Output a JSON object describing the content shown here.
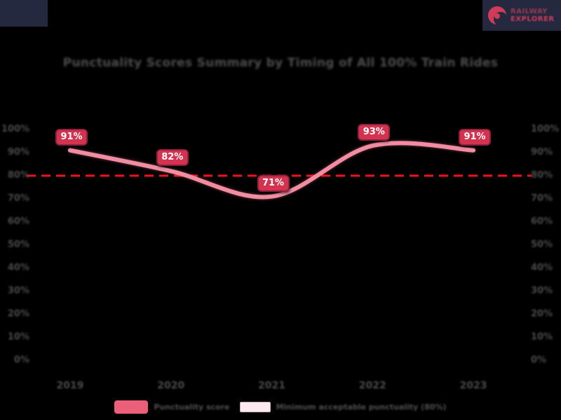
{
  "brand": {
    "name_line1": "RAILWAY",
    "name_line2": "EXPLORER"
  },
  "chart_data": {
    "type": "line",
    "title": "Punctuality Scores Summary by Timing of All 100% Train Rides",
    "categories": [
      "2019",
      "2020",
      "2021",
      "2022",
      "2023"
    ],
    "series": [
      {
        "name": "Punctuality score",
        "color": "#f08da1",
        "values": [
          91,
          82,
          71,
          93,
          91
        ],
        "point_label_suffix": "%"
      }
    ],
    "threshold": {
      "value": 80,
      "color": "#f2101c",
      "style": "dashed"
    },
    "ylim": [
      0,
      100
    ],
    "yticks": [
      100,
      90,
      80,
      70,
      60,
      50,
      40,
      30,
      20,
      10,
      0
    ],
    "ytick_suffix": "%",
    "grid": false,
    "legend_position": "bottom",
    "legend": [
      {
        "label": "Punctuality score",
        "swatch_color": "#eb5f78",
        "swatch_border": ""
      },
      {
        "label": "Minimum acceptable punctuality (80%)",
        "swatch_color": "#fceaf0",
        "swatch_border": "#c9a7b4"
      }
    ],
    "data_label_style": {
      "bg": "#d4334f",
      "border": "#8f2140",
      "text": "#ffffff"
    }
  }
}
